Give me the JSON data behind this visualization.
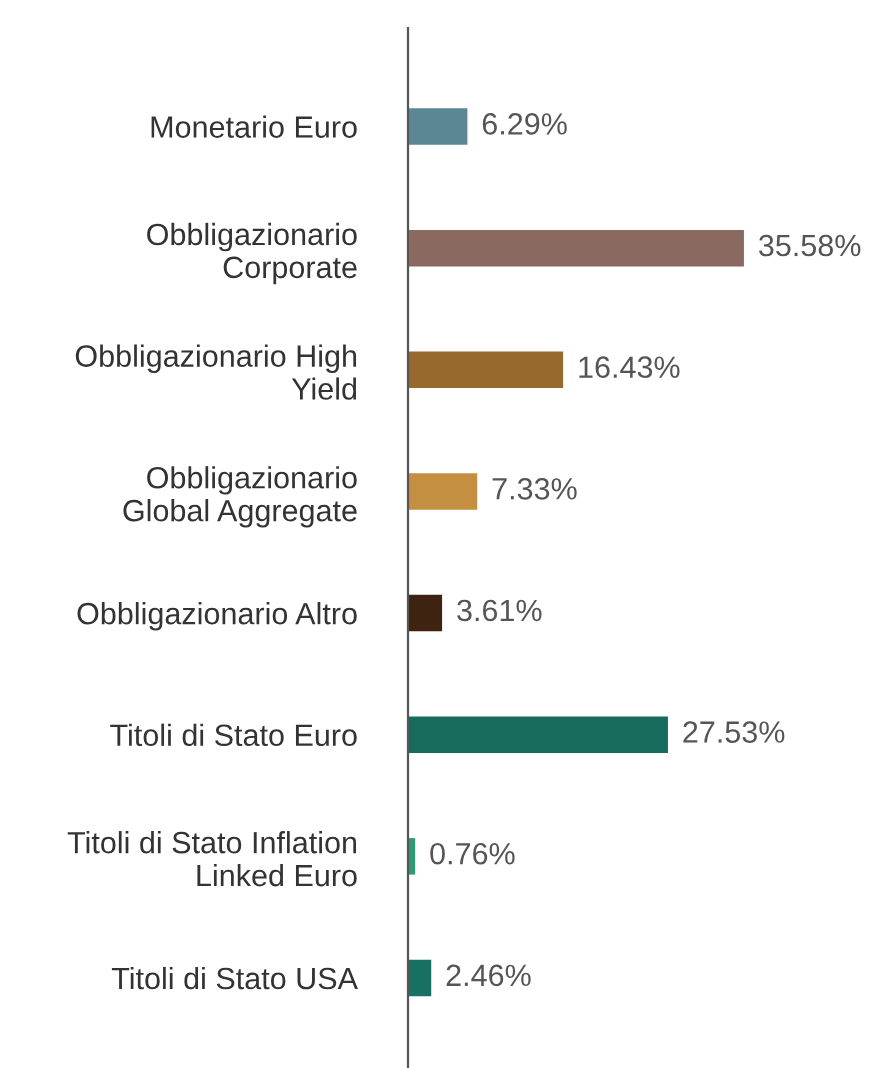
{
  "chart_data": {
    "type": "bar",
    "orientation": "horizontal",
    "categories": [
      "Monetario Euro",
      "Obbligazionario\nCorporate",
      "Obbligazionario High\nYield",
      "Obbligazionario\nGlobal Aggregate",
      "Obbligazionario Altro",
      "Titoli di Stato Euro",
      "Titoli di Stato Inflation\nLinked Euro",
      "Titoli di Stato USA"
    ],
    "values": [
      6.29,
      35.58,
      16.43,
      7.33,
      3.61,
      27.53,
      0.76,
      2.46
    ],
    "value_labels": [
      "6.29%",
      "35.58%",
      "16.43%",
      "7.33%",
      "3.61%",
      "27.53%",
      "0.76%",
      "2.46%"
    ],
    "colors": [
      "#5b8794",
      "#8a6a60",
      "#956a2c",
      "#c48f40",
      "#3e2310",
      "#166b5c",
      "#2f9a75",
      "#187062"
    ],
    "tick_labels": "y",
    "grid": false,
    "legend": false
  }
}
